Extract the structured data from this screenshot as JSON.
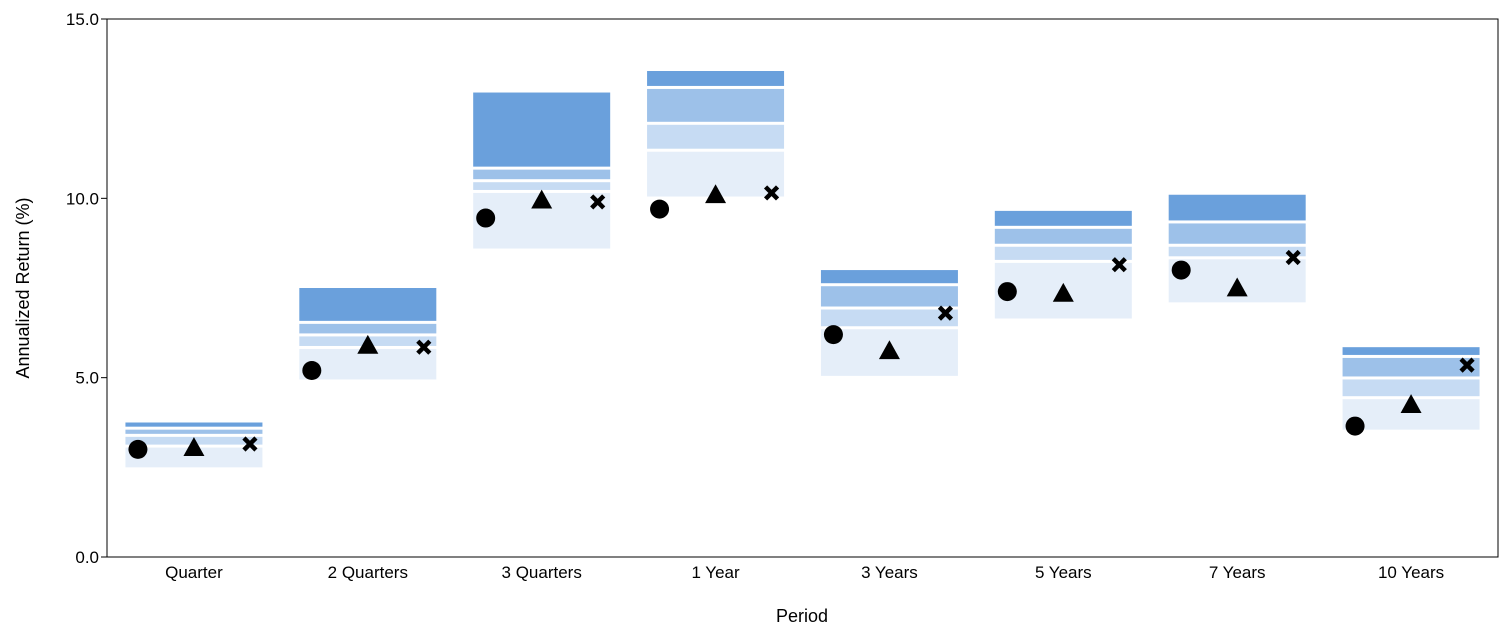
{
  "chart_data": {
    "type": "box",
    "title": "",
    "xlabel": "Period",
    "ylabel": "Annualized Return (%)",
    "ylim": [
      0,
      15
    ],
    "yticks": [
      "0.0",
      "5.0",
      "10.0",
      "15.0"
    ],
    "grid": false,
    "categories": [
      "Quarter",
      "2 Quarters",
      "3 Quarters",
      "1 Year",
      "3 Years",
      "5 Years",
      "7 Years",
      "10 Years"
    ],
    "percentile_bands": [
      [
        3.75,
        3.55,
        3.35,
        3.05,
        2.5
      ],
      [
        7.5,
        6.5,
        6.15,
        5.8,
        4.95
      ],
      [
        12.95,
        10.8,
        10.45,
        10.15,
        8.6
      ],
      [
        13.55,
        13.05,
        12.05,
        11.3,
        10.05
      ],
      [
        8.0,
        7.55,
        6.9,
        6.35,
        5.05
      ],
      [
        9.65,
        9.15,
        8.65,
        8.2,
        6.65
      ],
      [
        10.1,
        9.3,
        8.65,
        8.3,
        7.1
      ],
      [
        5.85,
        5.55,
        4.95,
        4.4,
        3.55
      ]
    ],
    "band_colors": [
      "#6aa0dc",
      "#9dc1e9",
      "#c6dbf3",
      "#e5eef9"
    ],
    "series": [
      {
        "marker": "circle",
        "values": [
          3.0,
          5.2,
          9.45,
          9.7,
          6.2,
          7.4,
          8.0,
          3.65
        ]
      },
      {
        "marker": "triangle",
        "values": [
          3.05,
          5.9,
          9.95,
          10.1,
          5.75,
          7.35,
          7.5,
          4.25
        ]
      },
      {
        "marker": "x",
        "values": [
          3.15,
          5.85,
          9.9,
          10.15,
          6.8,
          8.15,
          8.35,
          5.35
        ]
      }
    ]
  }
}
